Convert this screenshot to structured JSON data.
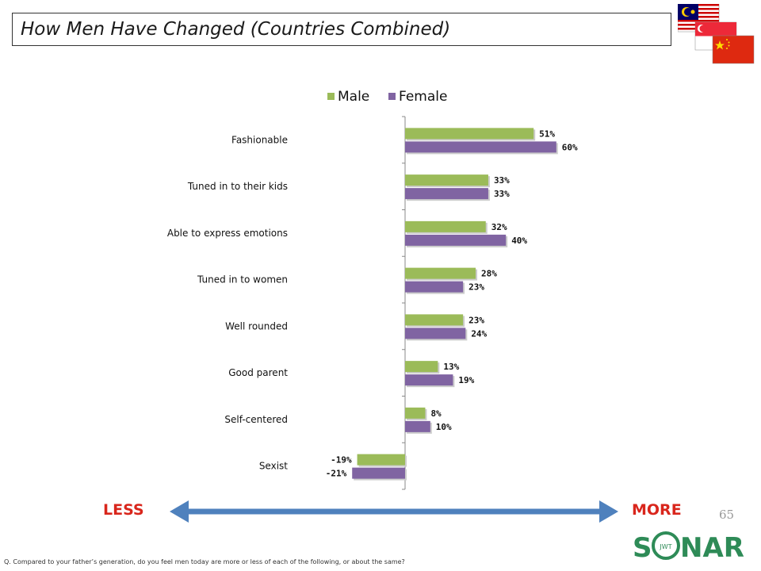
{
  "slide": {
    "title": "How Men Have Changed (Countries Combined)",
    "page_number": "65",
    "footnote": "Q. Compared to your father’s generation, do you feel men today are more or less of each of the following, or about the same?",
    "less_label": "LESS",
    "more_label": "MORE",
    "logo_text": "SONAR",
    "logo_letters": "JWT"
  },
  "flags": [
    "Malaysia",
    "Singapore",
    "China"
  ],
  "colors": {
    "male": "#9bbb59",
    "female": "#8064a2",
    "arrow": "#4f81bd",
    "accent_red": "#d9261c",
    "logo_green": "#2e8b57"
  },
  "chart_data": {
    "type": "bar",
    "orientation": "horizontal",
    "categories": [
      "Fashionable",
      "Tuned in to their kids",
      "Able to express emotions",
      "Tuned in to women",
      "Well rounded",
      "Good parent",
      "Self-centered",
      "Sexist"
    ],
    "series": [
      {
        "name": "Male",
        "values": [
          51,
          33,
          32,
          28,
          23,
          13,
          8,
          -19
        ],
        "labels": [
          "51%",
          "33%",
          "32%",
          "28%",
          "23%",
          "13%",
          "8%",
          "-19%"
        ]
      },
      {
        "name": "Female",
        "values": [
          60,
          33,
          40,
          23,
          24,
          19,
          10,
          -21
        ],
        "labels": [
          "60%",
          "33%",
          "40%",
          "23%",
          "24%",
          "19%",
          "10%",
          "-21%"
        ]
      }
    ],
    "legend_position": "top",
    "xlim": [
      -25,
      70
    ],
    "grid": false
  }
}
